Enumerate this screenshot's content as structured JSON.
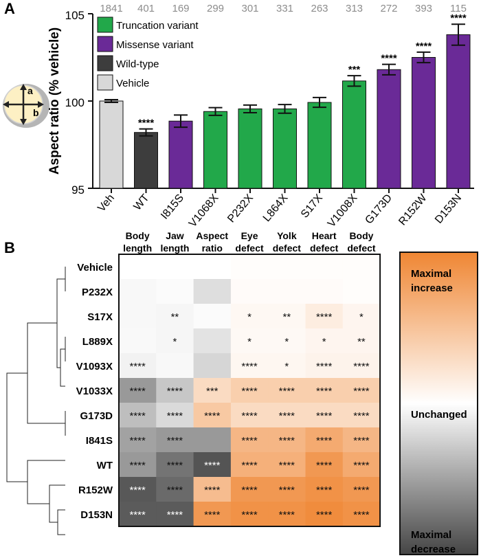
{
  "panel_a": {
    "label": "A",
    "y_axis_label": "Aspect ratio (% vehicle)",
    "ticks": [
      "95",
      "100",
      "105"
    ],
    "legend": [
      {
        "label": "Truncation variant",
        "color": "#22a84a"
      },
      {
        "label": "Missense variant",
        "color": "#6a2a97"
      },
      {
        "label": "Wild-type",
        "color": "#3d3d3d"
      },
      {
        "label": "Vehicle",
        "color": "#d8d8d8"
      }
    ],
    "schematic_labels": [
      "a",
      "b"
    ]
  },
  "panel_b": {
    "label": "B",
    "colorbar_labels": {
      "top": [
        "Maximal",
        "increase"
      ],
      "middle": "Unchanged",
      "bottom": [
        "Maximal",
        "decrease"
      ]
    }
  },
  "chart_data": [
    {
      "type": "bar",
      "ylabel": "Aspect ratio (% vehicle)",
      "ylim": [
        95,
        105
      ],
      "categories": [
        "Veh",
        "WT",
        "I815S",
        "V1068X",
        "P232X",
        "L864X",
        "S17X",
        "V1008X",
        "G173D",
        "R152W",
        "D153N"
      ],
      "values": [
        100.0,
        98.2,
        98.85,
        99.4,
        99.55,
        99.55,
        99.92,
        101.15,
        101.8,
        102.5,
        103.8
      ],
      "errors": [
        0.08,
        0.2,
        0.35,
        0.22,
        0.22,
        0.25,
        0.28,
        0.3,
        0.3,
        0.3,
        0.6
      ],
      "n": [
        "1841",
        "401",
        "169",
        "299",
        "301",
        "331",
        "263",
        "313",
        "272",
        "393",
        "115"
      ],
      "significance": [
        "",
        "****",
        "",
        "",
        "",
        "",
        "",
        "***",
        "****",
        "****",
        "****"
      ],
      "bar_types": [
        "vehicle",
        "wildtype",
        "missense",
        "truncation",
        "truncation",
        "truncation",
        "truncation",
        "truncation",
        "missense",
        "missense",
        "missense"
      ],
      "colors": {
        "vehicle": "#d8d8d8",
        "wildtype": "#3d3d3d",
        "missense": "#6a2a97",
        "truncation": "#22a84a"
      },
      "grid": false,
      "legend_position": "top-left"
    },
    {
      "type": "heatmap",
      "columns": [
        "Body length",
        "Jaw length",
        "Aspect ratio",
        "Eye defect",
        "Yolk defect",
        "Heart defect",
        "Body defect"
      ],
      "rows": [
        "Vehicle",
        "P232X",
        "S17X",
        "L889X",
        "V1093X",
        "V1033X",
        "G173D",
        "I841S",
        "WT",
        "R152W",
        "D153N"
      ],
      "values": [
        [
          0.0,
          0.0,
          0.0,
          0.02,
          0.02,
          0.02,
          0.02
        ],
        [
          -0.04,
          -0.02,
          -0.18,
          0.03,
          0.03,
          0.03,
          0.02
        ],
        [
          -0.04,
          -0.05,
          -0.02,
          0.06,
          0.06,
          0.15,
          0.08
        ],
        [
          -0.03,
          -0.05,
          -0.15,
          0.05,
          0.05,
          0.08,
          0.08
        ],
        [
          -0.07,
          -0.04,
          -0.22,
          0.07,
          0.07,
          0.1,
          0.1
        ],
        [
          -0.55,
          -0.3,
          0.3,
          0.4,
          0.4,
          0.4,
          0.4
        ],
        [
          -0.35,
          -0.2,
          0.45,
          0.3,
          0.3,
          0.3,
          0.3
        ],
        [
          -0.5,
          -0.55,
          -0.55,
          0.6,
          0.6,
          0.7,
          0.6
        ],
        [
          -0.55,
          -0.75,
          -0.92,
          0.65,
          0.65,
          0.85,
          0.7
        ],
        [
          -0.9,
          -0.8,
          0.55,
          0.85,
          0.85,
          0.9,
          0.85
        ],
        [
          -0.88,
          -0.88,
          0.85,
          0.9,
          0.9,
          0.95,
          0.9
        ]
      ],
      "significance": [
        [
          "",
          "",
          "",
          "",
          "",
          "",
          ""
        ],
        [
          "",
          "",
          "",
          "",
          "",
          "",
          ""
        ],
        [
          "",
          "**",
          "",
          "*",
          "**",
          "****",
          "*"
        ],
        [
          "",
          "*",
          "",
          "*",
          "*",
          "*",
          "**"
        ],
        [
          "****",
          "",
          "",
          "****",
          "*",
          "****",
          "****"
        ],
        [
          "****",
          "****",
          "***",
          "****",
          "****",
          "****",
          "****"
        ],
        [
          "****",
          "****",
          "****",
          "****",
          "****",
          "****",
          "****"
        ],
        [
          "****",
          "****",
          "",
          "****",
          "****",
          "****",
          "****"
        ],
        [
          "****",
          "****",
          "****",
          "****",
          "****",
          "****",
          "****"
        ],
        [
          "****",
          "****",
          "****",
          "****",
          "****",
          "****",
          "****"
        ],
        [
          "****",
          "****",
          "****",
          "****",
          "****",
          "****",
          "****"
        ]
      ],
      "colorscale": {
        "decrease": "#454545",
        "neutral": "#ffffff",
        "increase": "#ef8633"
      },
      "vrange": [
        -1,
        1
      ]
    }
  ]
}
